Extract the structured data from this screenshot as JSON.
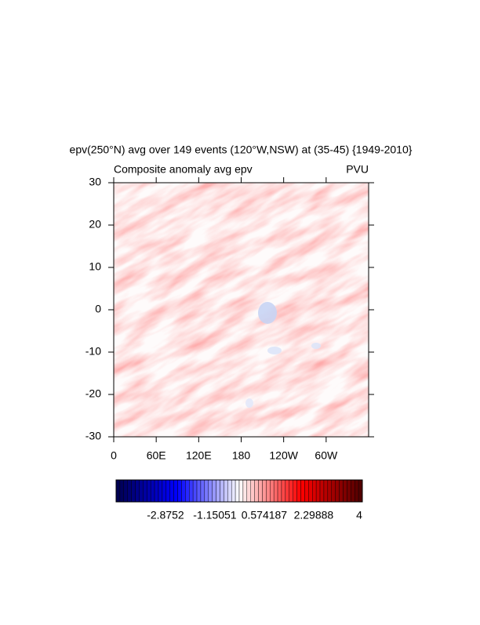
{
  "chart_data": {
    "type": "contour-map",
    "title": "epv(250°N) avg over 149 events (120°W,NSW) at (35-45) {1949-2010}",
    "subtitle_left": "Composite anomaly avg epv",
    "subtitle_right": "PVU",
    "xlim": [
      0,
      360
    ],
    "xticks": [
      0,
      {
        "value": 60,
        "label": "60E"
      },
      {
        "value": 120,
        "label": "120E"
      },
      180,
      {
        "value": 240,
        "label": "120W"
      },
      {
        "value": 300,
        "label": "60W"
      }
    ],
    "ylim": [
      -30,
      30
    ],
    "yticks": [
      -30,
      -20,
      -10,
      0,
      10,
      20,
      30
    ],
    "grid": false,
    "colorbar": {
      "clim": [
        -4.6,
        4
      ],
      "ticks": [
        -2.8752,
        -1.15051,
        0.574187,
        2.29888,
        4
      ],
      "colormap": [
        "#00004c",
        "#0000ff",
        "#ffffff",
        "#ff0000",
        "#4c0000"
      ]
    }
  }
}
